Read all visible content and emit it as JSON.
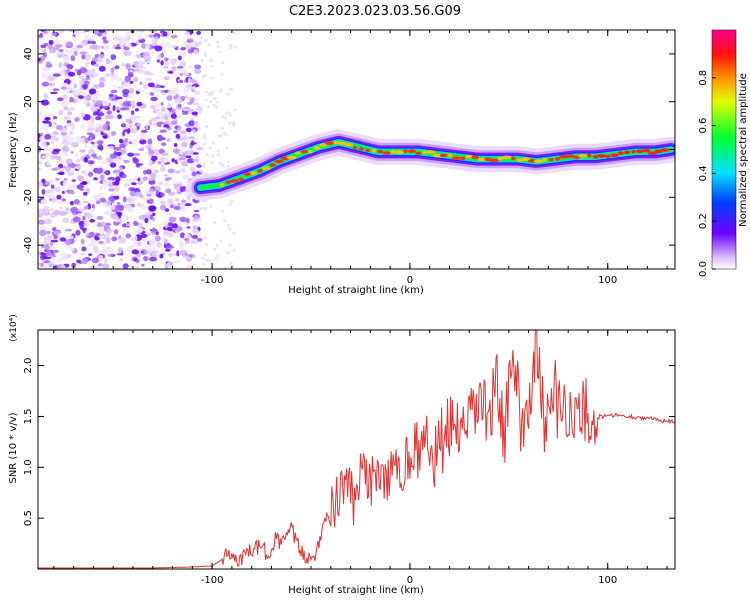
{
  "title": "C2E3.2023.023.03.56.G09",
  "chart_data": [
    {
      "type": "heatmap",
      "xlabel": "Height of straight line (km)",
      "ylabel": "Frequency (Hz)",
      "xlim": [
        -188,
        134
      ],
      "ylim": [
        -50,
        50
      ],
      "xticks": [
        -100,
        0,
        100
      ],
      "yticks": [
        -40,
        -20,
        0,
        20,
        40
      ],
      "colorbar": {
        "label": "Normalized spectral amplitude",
        "range": [
          0.0,
          1.0
        ],
        "ticks": [
          0.0,
          0.2,
          0.4,
          0.6,
          0.8
        ]
      },
      "ridge": {
        "x": [
          -106,
          -96,
          -86,
          -76,
          -66,
          -56,
          -46,
          -36,
          -26,
          -16,
          -6,
          4,
          14,
          24,
          34,
          44,
          54,
          64,
          74,
          84,
          94,
          104,
          114,
          124,
          132
        ],
        "y": [
          -16,
          -15,
          -12,
          -9,
          -5,
          -2,
          1,
          3,
          1,
          -1,
          -1,
          -1,
          -2,
          -3,
          -4,
          -4,
          -4,
          -5,
          -4,
          -3,
          -3,
          -2,
          -1,
          -1,
          0
        ]
      }
    },
    {
      "type": "line",
      "xlabel": "Height of straight line (km)",
      "ylabel": "SNR (10 * v/v)",
      "y_multiplier": "(x10⁴)",
      "xlim": [
        -188,
        134
      ],
      "ylim": [
        0,
        2.35
      ],
      "xticks": [
        -100,
        0,
        100
      ],
      "yticks": [
        0.5,
        1.0,
        1.5,
        2.0
      ],
      "series": [
        {
          "color": "#e83030",
          "x": [
            -188,
            -160,
            -130,
            -110,
            -100,
            -96,
            -92,
            -88,
            -84,
            -80,
            -76,
            -72,
            -68,
            -64,
            -60,
            -56,
            -52,
            -48,
            -44,
            -40,
            -36,
            -32,
            -28,
            -24,
            -20,
            -16,
            -12,
            -8,
            -4,
            0,
            4,
            8,
            12,
            16,
            20,
            24,
            28,
            32,
            36,
            40,
            44,
            48,
            52,
            56,
            60,
            64,
            68,
            72,
            76,
            80,
            84,
            88,
            92,
            96,
            100,
            104,
            108,
            112,
            116,
            120,
            124,
            128,
            134
          ],
          "y": [
            0.01,
            0.01,
            0.01,
            0.02,
            0.03,
            0.08,
            0.15,
            0.09,
            0.12,
            0.18,
            0.22,
            0.15,
            0.3,
            0.25,
            0.4,
            0.2,
            0.1,
            0.15,
            0.4,
            0.55,
            0.7,
            0.9,
            0.6,
            1.0,
            0.8,
            1.05,
            0.75,
            1.15,
            0.9,
            1.2,
            1.1,
            1.3,
            1.05,
            1.25,
            1.35,
            1.45,
            1.2,
            1.55,
            1.7,
            1.4,
            1.9,
            1.3,
            2.1,
            1.5,
            1.6,
            2.25,
            1.35,
            1.85,
            1.5,
            1.65,
            1.4,
            1.6,
            1.45,
            1.5,
            1.5,
            1.52,
            1.5,
            1.5,
            1.49,
            1.48,
            1.47,
            1.46,
            1.45
          ]
        }
      ]
    }
  ]
}
